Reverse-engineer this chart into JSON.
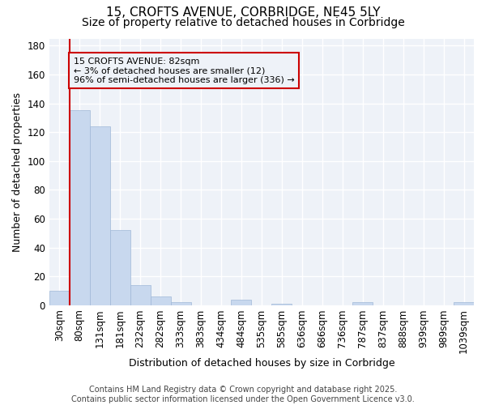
{
  "title": "15, CROFTS AVENUE, CORBRIDGE, NE45 5LY",
  "subtitle": "Size of property relative to detached houses in Corbridge",
  "xlabel": "Distribution of detached houses by size in Corbridge",
  "ylabel": "Number of detached properties",
  "annotation_title": "15 CROFTS AVENUE: 82sqm",
  "annotation_line2": "← 3% of detached houses are smaller (12)",
  "annotation_line3": "96% of semi-detached houses are larger (336) →",
  "footer_line1": "Contains HM Land Registry data © Crown copyright and database right 2025.",
  "footer_line2": "Contains public sector information licensed under the Open Government Licence v3.0.",
  "categories": [
    "30sqm",
    "80sqm",
    "131sqm",
    "181sqm",
    "232sqm",
    "282sqm",
    "333sqm",
    "383sqm",
    "434sqm",
    "484sqm",
    "535sqm",
    "585sqm",
    "636sqm",
    "686sqm",
    "736sqm",
    "787sqm",
    "837sqm",
    "888sqm",
    "939sqm",
    "989sqm",
    "1039sqm"
  ],
  "values": [
    10,
    135,
    124,
    52,
    14,
    6,
    2,
    0,
    0,
    4,
    0,
    1,
    0,
    0,
    0,
    2,
    0,
    0,
    0,
    0,
    2
  ],
  "bar_color": "#c8d8ee",
  "bar_edge_color": "#a0b8d8",
  "annotation_box_color": "#cc0000",
  "vline_color": "#cc0000",
  "ylim": [
    0,
    185
  ],
  "yticks": [
    0,
    20,
    40,
    60,
    80,
    100,
    120,
    140,
    160,
    180
  ],
  "background_color": "#ffffff",
  "plot_bg_color": "#eef2f8",
  "grid_color": "#ffffff",
  "title_fontsize": 11,
  "subtitle_fontsize": 10,
  "axis_label_fontsize": 9,
  "tick_fontsize": 8.5,
  "footer_fontsize": 7
}
